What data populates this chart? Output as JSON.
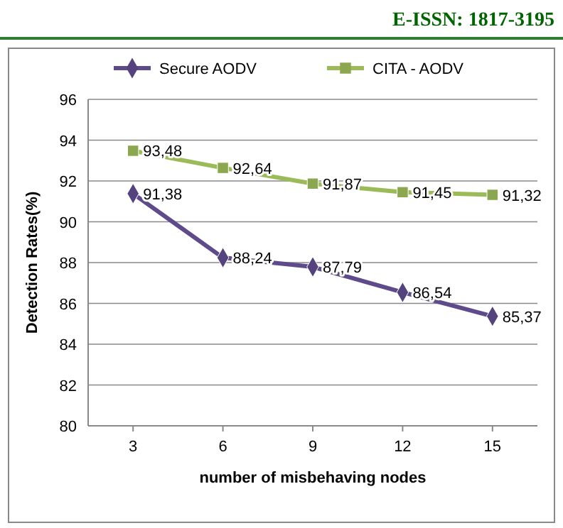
{
  "chart_data": {
    "type": "line",
    "xlabel": "number of misbehaving nodes",
    "ylabel": "Detection Rates(%)",
    "annotations": [
      "E-ISSN: 1817-3195"
    ],
    "categories": [
      "3",
      "6",
      "9",
      "12",
      "15"
    ],
    "series": [
      {
        "name": "Secure AODV",
        "color": "#5f4b8b",
        "marker": "diamond",
        "values": [
          91.38,
          88.24,
          87.79,
          86.54,
          85.37
        ],
        "value_labels": [
          "91,38",
          "88,24",
          "87,79",
          "86,54",
          "85,37"
        ]
      },
      {
        "name": "CITA - AODV",
        "color": "#9bbb59",
        "marker": "square",
        "values": [
          93.48,
          92.64,
          91.87,
          91.45,
          91.32
        ],
        "value_labels": [
          "93,48",
          "92,64",
          "91,87",
          "91,45",
          "91,32"
        ]
      }
    ],
    "ylim": [
      80,
      96
    ],
    "yticks": [
      80,
      82,
      84,
      86,
      88,
      90,
      92,
      94,
      96
    ],
    "grid": "y",
    "legend": "top"
  }
}
